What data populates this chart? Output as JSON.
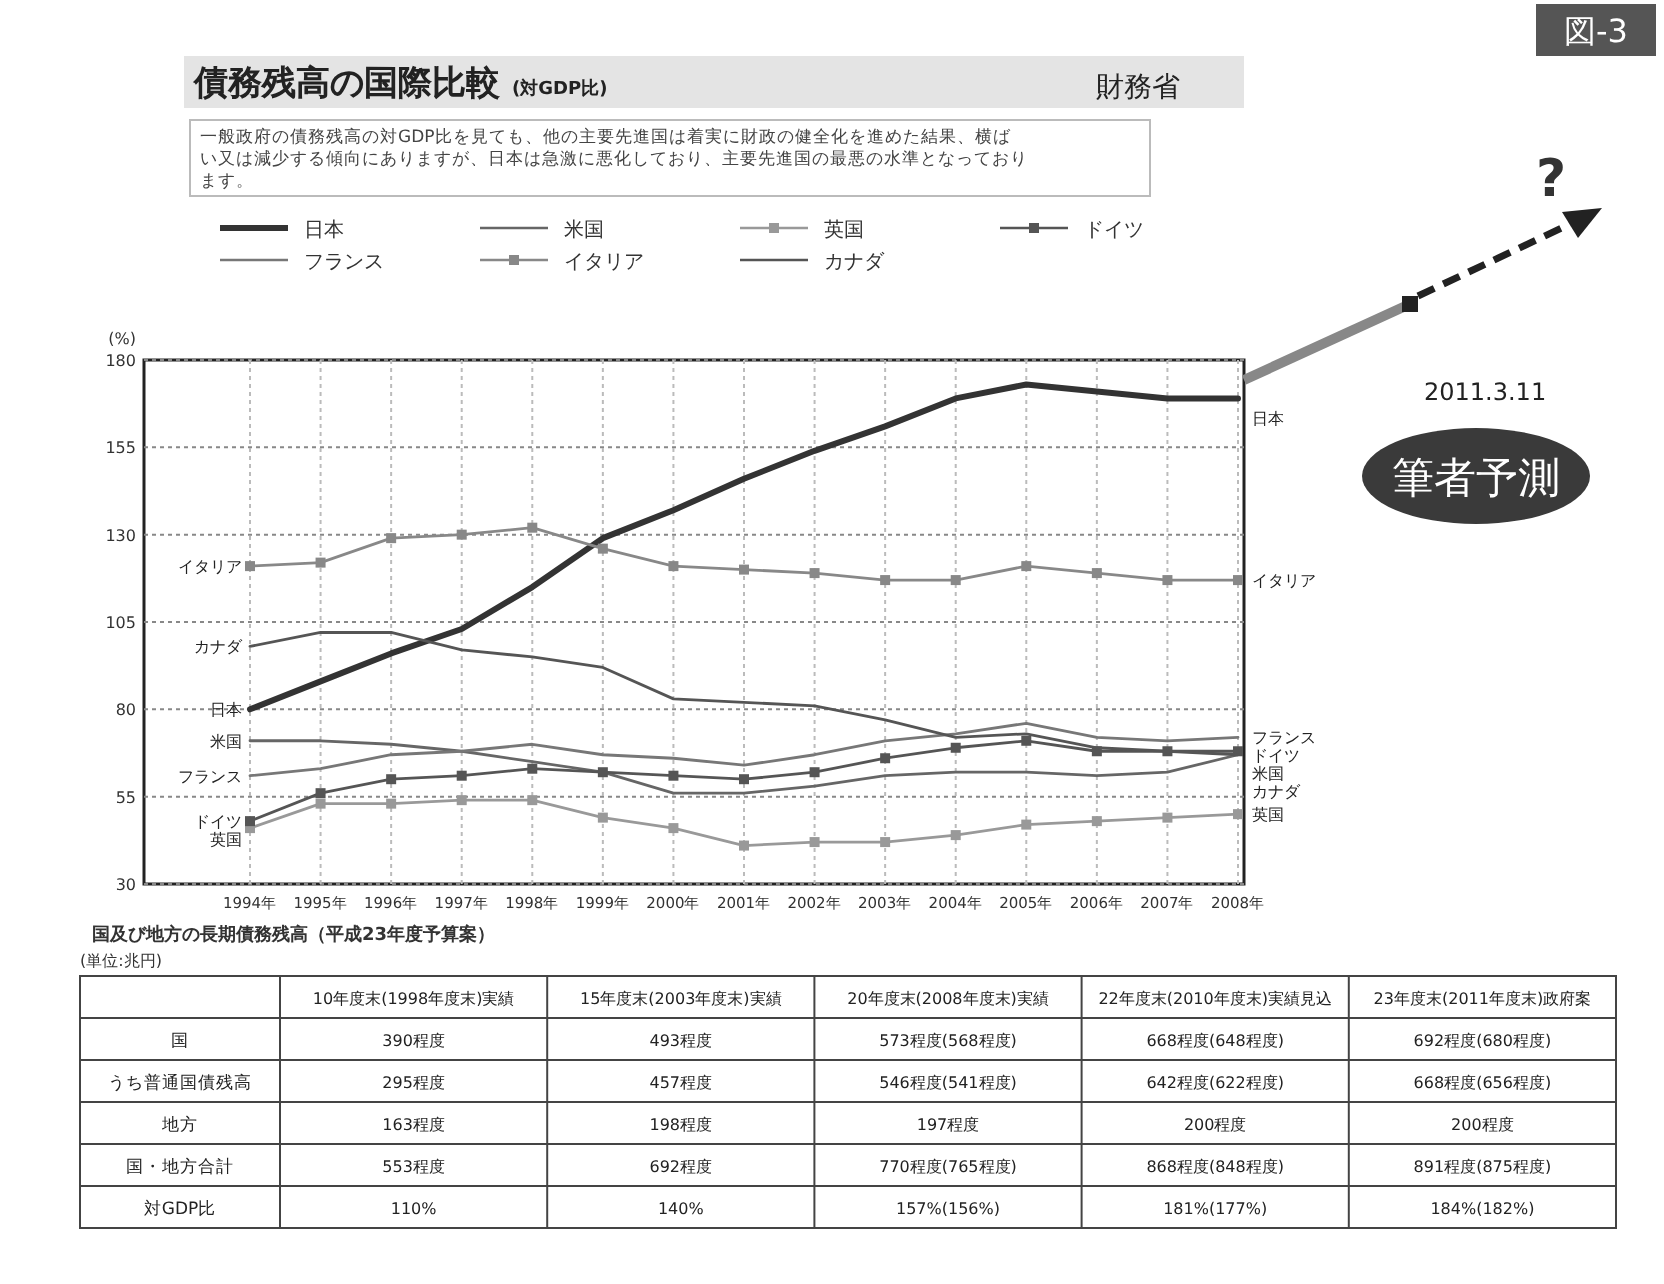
{
  "chart_data": [
    {
      "type": "line",
      "title": "債務残高の国際比較",
      "subtitle": "(対GDP比)",
      "ylabel": "(%)",
      "annotations": [
        "図-3",
        "財務省",
        "一般政府の債務残高の対GDP比を見ても、他の主要先進国は着実に財政の健全化を進めた結果、横ばい又は減少する傾向にありますが、日本は急激に悪化しており、主要先進国の最悪の水準となっております。",
        "?",
        "2011.3.11",
        "筆者予測"
      ],
      "categories": [
        "1994年",
        "1995年",
        "1996年",
        "1997年",
        "1998年",
        "1999年",
        "2000年",
        "2001年",
        "2002年",
        "2003年",
        "2004年",
        "2005年",
        "2006年",
        "2007年",
        "2008年"
      ],
      "ylim": [
        30,
        180
      ],
      "yticks": [
        30,
        55,
        80,
        105,
        130,
        155,
        180
      ],
      "grid": true,
      "legend": "top",
      "marker": "none",
      "line_style": "solid",
      "series": [
        {
          "name": "日本",
          "color": "#333333",
          "values": [
            80,
            88,
            96,
            103,
            115,
            129,
            137,
            146,
            154,
            161,
            169,
            173,
            171,
            169,
            169
          ]
        },
        {
          "name": "米国",
          "color": "#666666",
          "values": [
            71,
            71,
            70,
            68,
            65,
            62,
            56,
            56,
            58,
            61,
            62,
            62,
            61,
            62,
            67
          ]
        },
        {
          "name": "英国",
          "color": "#999999",
          "marker": "square",
          "values": [
            46,
            53,
            53,
            54,
            54,
            49,
            46,
            41,
            42,
            42,
            44,
            47,
            48,
            49,
            50
          ]
        },
        {
          "name": "ドイツ",
          "color": "#555555",
          "marker": "square",
          "values": [
            48,
            56,
            60,
            61,
            63,
            62,
            61,
            60,
            62,
            66,
            69,
            71,
            68,
            68,
            68
          ]
        },
        {
          "name": "フランス",
          "color": "#777777",
          "values": [
            61,
            63,
            67,
            68,
            70,
            67,
            66,
            64,
            67,
            71,
            73,
            76,
            72,
            71,
            72
          ]
        },
        {
          "name": "イタリア",
          "color": "#888888",
          "marker": "square",
          "values": [
            121,
            122,
            129,
            130,
            132,
            126,
            121,
            120,
            119,
            117,
            117,
            121,
            119,
            117,
            117
          ]
        },
        {
          "name": "カナダ",
          "color": "#555555",
          "values": [
            98,
            102,
            102,
            97,
            95,
            92,
            83,
            82,
            81,
            77,
            72,
            73,
            69,
            68,
            67
          ]
        }
      ]
    },
    {
      "type": "other",
      "title": "国及び地方の長期債務残高（平成23年度予算案）",
      "subtitle": "(単位:兆円)",
      "categories": [
        "10年度末(1998年度末)実績",
        "15年度末(2003年度末)実績",
        "20年度末(2008年度末)実績",
        "22年度末(2010年度末)実績見込",
        "23年度末(2011年度末)政府案"
      ],
      "y_categories": [
        "国",
        "うち普通国債残高",
        "地方",
        "国・地方合計",
        "対GDP比"
      ],
      "cell_labels": [
        [
          "390程度",
          "493程度",
          "573程度(568程度)",
          "668程度(648程度)",
          "692程度(680程度)"
        ],
        [
          "295程度",
          "457程度",
          "546程度(541程度)",
          "642程度(622程度)",
          "668程度(656程度)"
        ],
        [
          "163程度",
          "198程度",
          "197程度",
          "200程度",
          "200程度"
        ],
        [
          "553程度",
          "692程度",
          "770程度(765程度)",
          "868程度(848程度)",
          "891程度(875程度)"
        ],
        [
          "110%",
          "140%",
          "157%(156%)",
          "181%(177%)",
          "184%(182%)"
        ]
      ]
    }
  ]
}
